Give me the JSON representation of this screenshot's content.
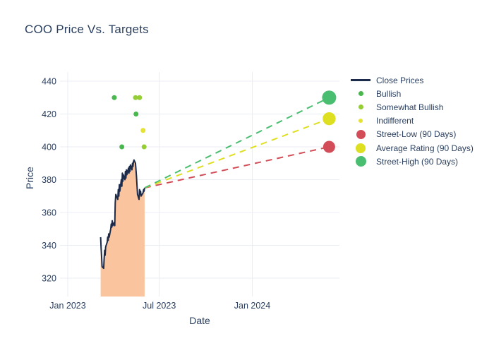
{
  "title": "COO Price Vs. Targets",
  "colors": {
    "text": "#2a3f5f",
    "grid": "#e9edf4",
    "close_line": "#1c2b4a",
    "close_fill": "#f9c49e",
    "bullish": "#48b74e",
    "somewhat_bullish": "#95cd35",
    "indifferent": "#e5e233",
    "street_low": "#d24d57",
    "average_rating": "#dfdf22",
    "street_high": "#4abe70"
  },
  "legend": {
    "items": [
      {
        "label": "Close Prices",
        "marker": "line",
        "color": "#1c2b4a",
        "size": 3
      },
      {
        "label": "Bullish",
        "marker": "dot",
        "color": "#48b74e",
        "size": 7
      },
      {
        "label": "Somewhat Bullish",
        "marker": "dot",
        "color": "#95cd35",
        "size": 7
      },
      {
        "label": "Indifferent",
        "marker": "dot",
        "color": "#e5e233",
        "size": 6
      },
      {
        "label": "Street-Low (90 Days)",
        "marker": "dot",
        "color": "#d24d57",
        "size": 13
      },
      {
        "label": "Average Rating (90 Days)",
        "marker": "dot",
        "color": "#dfdf22",
        "size": 14
      },
      {
        "label": "Street-High (90 Days)",
        "marker": "dot",
        "color": "#4abe70",
        "size": 15
      }
    ]
  },
  "chart_data": {
    "type": "line",
    "title": "COO Price Vs. Targets",
    "xlabel": "Date",
    "ylabel": "Price",
    "grid": true,
    "legend_position": "right",
    "y_ticks": [
      320,
      340,
      360,
      380,
      400,
      420,
      440
    ],
    "x_ticks": [
      {
        "label": "Jan 2023",
        "date": "2023-01-01"
      },
      {
        "label": "Jul 2023",
        "date": "2023-07-01"
      },
      {
        "label": "Jan 2024",
        "date": "2024-01-01"
      }
    ],
    "close_prices": {
      "name": "Close Prices",
      "fill": "tozero",
      "dates": [
        "2023-03-07",
        "2023-03-08",
        "2023-03-09",
        "2023-03-10",
        "2023-03-13",
        "2023-03-14",
        "2023-03-15",
        "2023-03-16",
        "2023-03-17",
        "2023-03-20",
        "2023-03-21",
        "2023-03-22",
        "2023-03-23",
        "2023-03-24",
        "2023-03-27",
        "2023-03-28",
        "2023-03-29",
        "2023-03-30",
        "2023-03-31",
        "2023-04-03",
        "2023-04-04",
        "2023-04-05",
        "2023-04-06",
        "2023-04-10",
        "2023-04-11",
        "2023-04-12",
        "2023-04-13",
        "2023-04-14",
        "2023-04-17",
        "2023-04-18",
        "2023-04-19",
        "2023-04-20",
        "2023-04-21",
        "2023-04-24",
        "2023-04-25",
        "2023-04-26",
        "2023-04-27",
        "2023-04-28",
        "2023-05-01",
        "2023-05-02",
        "2023-05-03",
        "2023-05-04",
        "2023-05-05",
        "2023-05-08",
        "2023-05-09",
        "2023-05-10",
        "2023-05-11",
        "2023-05-12",
        "2023-05-15",
        "2023-05-16",
        "2023-05-17",
        "2023-05-18",
        "2023-05-19",
        "2023-05-22",
        "2023-05-23",
        "2023-05-24",
        "2023-05-25",
        "2023-05-26",
        "2023-05-30",
        "2023-05-31",
        "2023-06-01",
        "2023-06-02"
      ],
      "values": [
        345,
        338,
        333,
        327,
        326,
        332,
        337,
        334,
        339,
        342,
        345,
        343,
        347,
        345,
        350,
        353,
        351,
        355,
        352,
        354,
        352,
        366,
        371,
        368,
        374,
        370,
        377,
        373,
        380,
        376,
        384,
        379,
        383,
        380,
        385,
        381,
        386,
        383,
        387,
        384,
        388,
        385,
        389,
        386,
        390,
        388,
        391,
        392,
        390,
        386,
        382,
        376,
        371,
        368,
        374,
        371,
        373,
        370,
        372,
        374,
        373,
        375
      ]
    },
    "analyst_ratings": [
      {
        "date": "2023-04-03",
        "price_target": 430,
        "rating": "Bullish"
      },
      {
        "date": "2023-04-18",
        "price_target": 400,
        "rating": "Bullish"
      },
      {
        "date": "2023-05-15",
        "price_target": 430,
        "rating": "Somewhat Bullish"
      },
      {
        "date": "2023-05-16",
        "price_target": 420,
        "rating": "Bullish"
      },
      {
        "date": "2023-05-23",
        "price_target": 430,
        "rating": "Somewhat Bullish"
      },
      {
        "date": "2023-05-30",
        "price_target": 410,
        "rating": "Indifferent"
      },
      {
        "date": "2023-06-01",
        "price_target": 400,
        "rating": "Somewhat Bullish"
      }
    ],
    "targets": [
      {
        "name": "Street-Low (90 Days)",
        "value": 400,
        "date": "2024-06-01",
        "color_key": "street_low",
        "radius": 8.5
      },
      {
        "name": "Average Rating (90 Days)",
        "value": 417.14,
        "date": "2024-06-01",
        "color_key": "average_rating",
        "radius": 9.2
      },
      {
        "name": "Street-High (90 Days)",
        "value": 430,
        "date": "2024-06-01",
        "color_key": "street_high",
        "radius": 10
      }
    ]
  }
}
